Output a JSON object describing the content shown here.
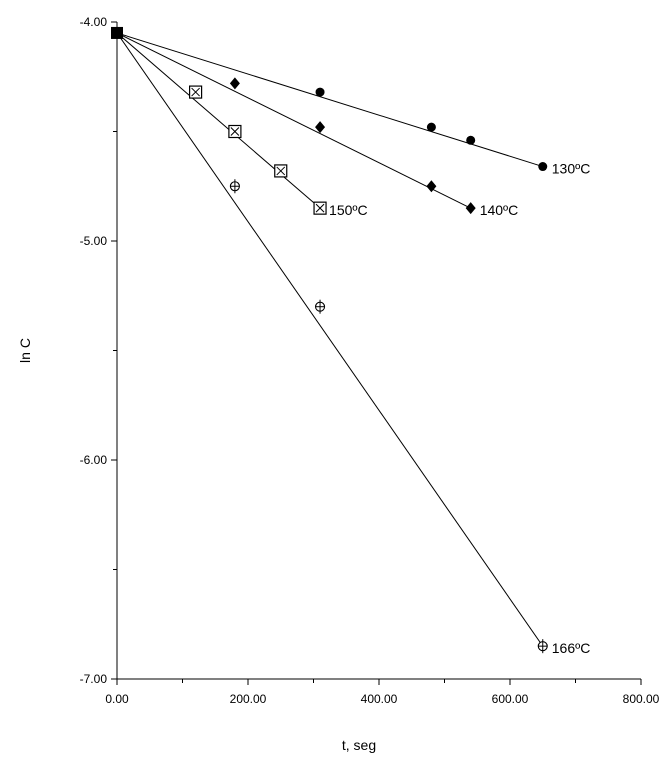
{
  "chart_data": {
    "type": "scatter",
    "xlabel": "t, seg",
    "ylabel": "ln C",
    "xlim": [
      0,
      800
    ],
    "ylim": [
      -7,
      -4
    ],
    "x_ticks": [
      0,
      200,
      400,
      600,
      800
    ],
    "x_tick_labels": [
      "0.00",
      "200.00",
      "400.00",
      "600.00",
      "800.00"
    ],
    "y_ticks": [
      -4,
      -5,
      -6,
      -7
    ],
    "y_tick_labels": [
      "-4.00",
      "-5.00",
      "-6.00",
      "-7.00"
    ],
    "grid": false,
    "fit_lines": true,
    "series": [
      {
        "name": "130ºC",
        "marker": "circle",
        "points": [
          [
            0,
            -4.05
          ],
          [
            310,
            -4.32
          ],
          [
            480,
            -4.48
          ],
          [
            540,
            -4.54
          ],
          [
            650,
            -4.66
          ]
        ],
        "fit": [
          [
            0,
            -4.05
          ],
          [
            650,
            -4.66
          ]
        ]
      },
      {
        "name": "140ºC",
        "marker": "diamond",
        "points": [
          [
            0,
            -4.05
          ],
          [
            180,
            -4.28
          ],
          [
            310,
            -4.48
          ],
          [
            480,
            -4.75
          ],
          [
            540,
            -4.85
          ]
        ],
        "fit": [
          [
            0,
            -4.05
          ],
          [
            540,
            -4.85
          ]
        ]
      },
      {
        "name": "150ºC",
        "marker": "boxed-x",
        "points": [
          [
            0,
            -4.05
          ],
          [
            120,
            -4.32
          ],
          [
            180,
            -4.5
          ],
          [
            250,
            -4.68
          ],
          [
            310,
            -4.85
          ]
        ],
        "fit": [
          [
            0,
            -4.05
          ],
          [
            310,
            -4.85
          ]
        ]
      },
      {
        "name": "166ºC",
        "marker": "circle-plus",
        "points": [
          [
            0,
            -4.05
          ],
          [
            180,
            -4.75
          ],
          [
            310,
            -5.3
          ],
          [
            650,
            -6.85
          ]
        ],
        "fit": [
          [
            0,
            -4.05
          ],
          [
            650,
            -6.85
          ]
        ]
      }
    ]
  }
}
